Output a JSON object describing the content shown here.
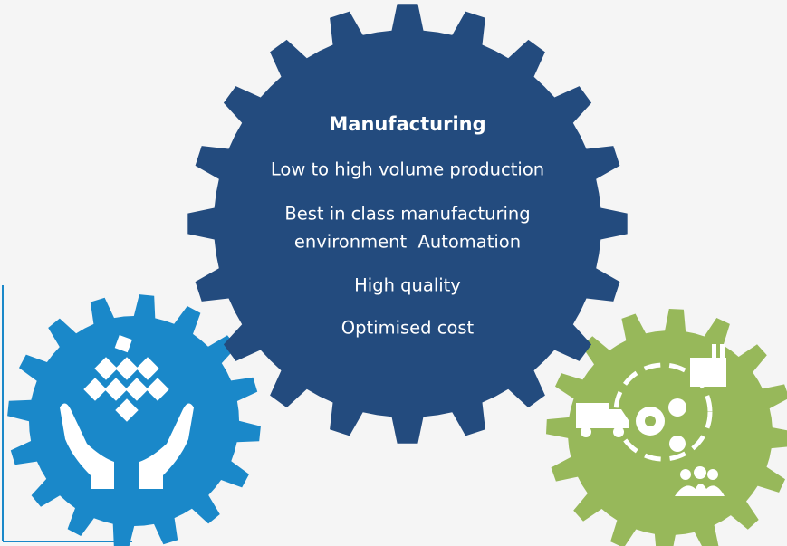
{
  "center_gear": {
    "title": "Manufacturing",
    "items": [
      [
        "Low to high volume production"
      ],
      [
        "Best in class manufacturing",
        "environment  Automation"
      ],
      [
        "High quality"
      ],
      [
        "Optimised cost"
      ]
    ]
  }
}
